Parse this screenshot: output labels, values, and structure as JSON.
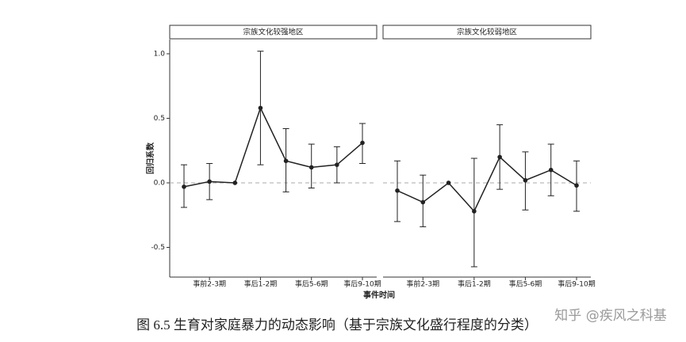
{
  "chart_data": {
    "type": "errorbar",
    "y_label": "回归系数",
    "x_label": "事件时间",
    "categories": [
      null,
      "事前2-3期",
      null,
      "事后1-2期",
      null,
      "事后5-6期",
      null,
      "事后9-10期"
    ],
    "ylim": [
      -0.73,
      1.11
    ],
    "yticks": [
      {
        "value": 1,
        "label": "1.0"
      },
      0.5,
      {
        "value": 0,
        "label": "0.0"
      },
      -0.5
    ],
    "hline": 0,
    "color": "#222222",
    "panels": [
      {
        "title": "宗族文化较强地区",
        "values": [
          -0.03,
          0.01,
          0,
          0.58,
          0.17,
          0.12,
          0.14,
          0.31
        ],
        "upper": [
          0.14,
          0.15,
          null,
          1.02,
          0.42,
          0.3,
          0.28,
          0.46
        ],
        "lower": [
          -0.19,
          -0.13,
          null,
          0.14,
          -0.07,
          -0.04,
          0.0,
          0.15
        ]
      },
      {
        "title": "宗族文化较弱地区",
        "values": [
          -0.06,
          -0.15,
          0,
          -0.22,
          0.2,
          0.02,
          0.1,
          -0.02
        ],
        "upper": [
          0.17,
          0.06,
          null,
          0.19,
          0.45,
          0.24,
          0.3,
          0.17
        ],
        "lower": [
          -0.3,
          -0.34,
          null,
          -0.65,
          -0.05,
          -0.21,
          -0.1,
          -0.22
        ]
      }
    ]
  },
  "caption": "图 6.5  生育对家庭暴力的动态影响（基于宗族文化盛行程度的分类）",
  "watermark": "知乎 @疾风之科基"
}
